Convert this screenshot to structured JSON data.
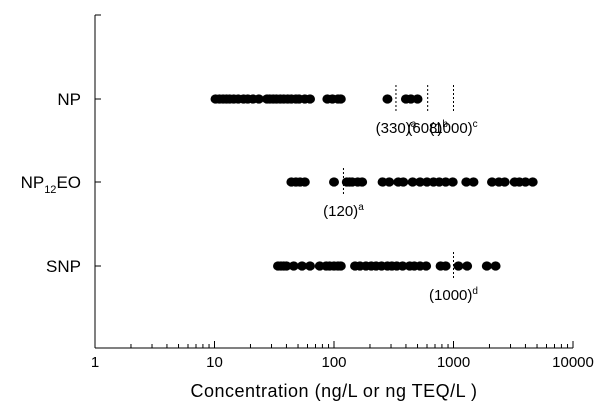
{
  "chart_data": {
    "type": "scatter",
    "xlabel": "Concentration (ng/L  or ng TEQ/L )",
    "ylabel": "",
    "x_scale": "log",
    "xlim": [
      1,
      10000
    ],
    "grid": false,
    "x_ticks": [
      {
        "value": 1,
        "label": "1"
      },
      {
        "value": 10,
        "label": "10"
      },
      {
        "value": 100,
        "label": "100"
      },
      {
        "value": 1000,
        "label": "1000"
      },
      {
        "value": 10000,
        "label": "10000"
      }
    ],
    "categories": [
      {
        "label": "NP",
        "sub": ""
      },
      {
        "label": "NP",
        "sub": "12",
        "after": "EO"
      },
      {
        "label": "SNP",
        "sub": ""
      }
    ],
    "series": [
      {
        "category_index": 0,
        "values": [
          10.2,
          11.0,
          11.8,
          12.6,
          13.4,
          14.5,
          15.8,
          17.5,
          19.0,
          21.0,
          23.5,
          27.5,
          29.0,
          31.0,
          33.0,
          35.5,
          38.0,
          41.0,
          44.0,
          48.0,
          51.0,
          57.0,
          63.0,
          88.0,
          97.0,
          108.0,
          114.0,
          280.0,
          400.0,
          440.0,
          500.0
        ]
      },
      {
        "category_index": 1,
        "values": [
          44.0,
          48.0,
          52.0,
          57.0,
          100.0,
          128.0,
          135.0,
          142.0,
          158.0,
          172.0,
          255.0,
          290.0,
          345.0,
          380.0,
          455.0,
          525.0,
          600.0,
          680.0,
          760.0,
          860.0,
          985.0,
          1280.0,
          1470.0,
          2100.0,
          2400.0,
          2680.0,
          3250.0,
          3560.0,
          4000.0,
          4600.0
        ]
      },
      {
        "category_index": 2,
        "values": [
          34.0,
          36.0,
          38.0,
          40.0,
          46.0,
          54.0,
          63.0,
          76.0,
          86.0,
          92.0,
          100.0,
          108.0,
          114.0,
          150.0,
          165.0,
          185.0,
          205.0,
          225.0,
          250.0,
          280.0,
          305.0,
          335.0,
          375.0,
          430.0,
          470.0,
          525.0,
          590.0,
          780.0,
          860.0,
          1100.0,
          1300.0,
          1900.0,
          2250.0
        ]
      }
    ],
    "reference_lines": [
      {
        "category_index": 0,
        "value": 330,
        "label": "(330)",
        "sup": "a"
      },
      {
        "category_index": 0,
        "value": 608,
        "label": "(608)",
        "sup": "b"
      },
      {
        "category_index": 0,
        "value": 1000,
        "label": "(1000)",
        "sup": "c"
      },
      {
        "category_index": 1,
        "value": 120,
        "label": "(120)",
        "sup": "a"
      },
      {
        "category_index": 2,
        "value": 1000,
        "label": "(1000)",
        "sup": "d"
      }
    ]
  }
}
